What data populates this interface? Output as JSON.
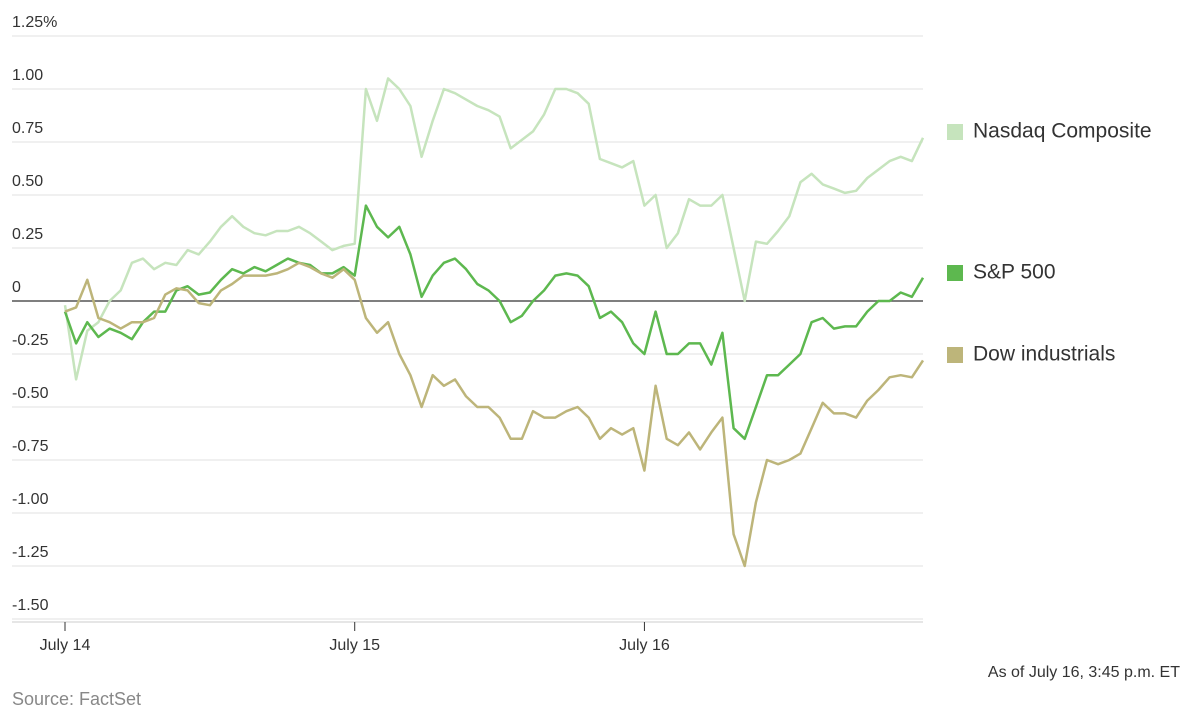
{
  "chart_data": {
    "type": "line",
    "note": "As of July 16, 3:45 p.m. ET",
    "source": "Source: FactSet",
    "categories": [
      "July 14",
      null,
      null,
      null,
      null,
      null,
      null,
      null,
      null,
      null,
      null,
      null,
      null,
      null,
      null,
      null,
      null,
      null,
      null,
      null,
      null,
      null,
      null,
      null,
      null,
      null,
      "July 15",
      null,
      null,
      null,
      null,
      null,
      null,
      null,
      null,
      null,
      null,
      null,
      null,
      null,
      null,
      null,
      null,
      null,
      null,
      null,
      null,
      null,
      null,
      null,
      null,
      null,
      "July 16",
      null,
      null,
      null,
      null,
      null,
      null,
      null,
      null,
      null,
      null,
      null,
      null,
      null,
      null,
      null,
      null,
      null,
      null,
      null,
      null,
      null,
      null,
      null,
      null,
      null
    ],
    "ylim": [
      -1.5,
      1.25
    ],
    "yticks": [
      {
        "value": 1.25,
        "label": "1.25%"
      },
      {
        "value": 1,
        "label": "1.00"
      },
      0.75,
      {
        "value": 0.5,
        "label": "0.50"
      },
      0.25,
      0,
      -0.25,
      {
        "value": -0.5,
        "label": "-0.50"
      },
      -0.75,
      {
        "value": -1,
        "label": "-1.00"
      },
      -1.25,
      {
        "value": -1.5,
        "label": "-1.50"
      }
    ],
    "grid": true,
    "series": [
      {
        "name": "Nasdaq Composite",
        "color": "#c6e4bd",
        "values": [
          -0.02,
          -0.37,
          -0.14,
          -0.1,
          0.0,
          0.05,
          0.18,
          0.2,
          0.15,
          0.18,
          0.17,
          0.24,
          0.22,
          0.28,
          0.35,
          0.4,
          0.35,
          0.32,
          0.31,
          0.33,
          0.33,
          0.35,
          0.32,
          0.28,
          0.24,
          0.26,
          0.27,
          1.0,
          0.85,
          1.05,
          1.0,
          0.92,
          0.68,
          0.85,
          1.0,
          0.98,
          0.95,
          0.92,
          0.9,
          0.87,
          0.72,
          0.76,
          0.8,
          0.88,
          1.0,
          1.0,
          0.98,
          0.93,
          0.67,
          0.65,
          0.63,
          0.66,
          0.45,
          0.5,
          0.25,
          0.32,
          0.48,
          0.45,
          0.45,
          0.5,
          0.25,
          0.0,
          0.28,
          0.27,
          0.33,
          0.4,
          0.56,
          0.6,
          0.55,
          0.53,
          0.51,
          0.52,
          0.58,
          0.62,
          0.66,
          0.68,
          0.66,
          0.77
        ]
      },
      {
        "name": "S&P 500",
        "color": "#5db84f",
        "values": [
          -0.05,
          -0.2,
          -0.1,
          -0.17,
          -0.13,
          -0.15,
          -0.18,
          -0.1,
          -0.05,
          -0.05,
          0.05,
          0.07,
          0.03,
          0.04,
          0.1,
          0.15,
          0.13,
          0.16,
          0.14,
          0.17,
          0.2,
          0.18,
          0.17,
          0.13,
          0.13,
          0.16,
          0.12,
          0.45,
          0.35,
          0.3,
          0.35,
          0.22,
          0.02,
          0.12,
          0.18,
          0.2,
          0.15,
          0.08,
          0.05,
          0.0,
          -0.1,
          -0.07,
          0.0,
          0.05,
          0.12,
          0.13,
          0.12,
          0.07,
          -0.08,
          -0.05,
          -0.1,
          -0.2,
          -0.25,
          -0.05,
          -0.25,
          -0.25,
          -0.2,
          -0.2,
          -0.3,
          -0.15,
          -0.6,
          -0.65,
          -0.5,
          -0.35,
          -0.35,
          -0.3,
          -0.25,
          -0.1,
          -0.08,
          -0.13,
          -0.12,
          -0.12,
          -0.05,
          0.0,
          0.0,
          0.04,
          0.02,
          0.11
        ]
      },
      {
        "name": "Dow industrials",
        "color": "#bdb57a",
        "values": [
          -0.05,
          -0.03,
          0.1,
          -0.08,
          -0.1,
          -0.13,
          -0.1,
          -0.1,
          -0.08,
          0.03,
          0.06,
          0.05,
          -0.01,
          -0.02,
          0.05,
          0.08,
          0.12,
          0.12,
          0.12,
          0.13,
          0.15,
          0.18,
          0.16,
          0.13,
          0.11,
          0.15,
          0.1,
          -0.08,
          -0.15,
          -0.1,
          -0.25,
          -0.35,
          -0.5,
          -0.35,
          -0.4,
          -0.37,
          -0.45,
          -0.5,
          -0.5,
          -0.55,
          -0.65,
          -0.65,
          -0.52,
          -0.55,
          -0.55,
          -0.52,
          -0.5,
          -0.55,
          -0.65,
          -0.6,
          -0.63,
          -0.6,
          -0.8,
          -0.4,
          -0.65,
          -0.68,
          -0.62,
          -0.7,
          -0.62,
          -0.55,
          -1.1,
          -1.25,
          -0.95,
          -0.75,
          -0.77,
          -0.75,
          -0.72,
          -0.6,
          -0.48,
          -0.53,
          -0.53,
          -0.55,
          -0.47,
          -0.42,
          -0.36,
          -0.35,
          -0.36,
          -0.28
        ]
      }
    ]
  }
}
